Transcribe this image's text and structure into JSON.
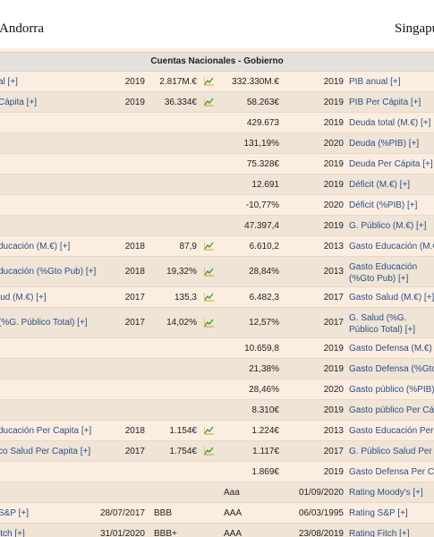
{
  "countries": {
    "left": "Andorra",
    "right": "Singapur"
  },
  "section_title": "Cuentas Nacionales - Gobierno",
  "rows": [
    {
      "ll": "al [+]",
      "ly": "2019",
      "lv": "2.817M.€",
      "icon": true,
      "rv": "332.330M.€",
      "ry": "2019",
      "rl": "PIB anual [+]",
      "h": 23
    },
    {
      "ll": "Cápita [+]",
      "ly": "2019",
      "lv": "36.334€",
      "icon": true,
      "rv": "58.263€",
      "ry": "2019",
      "rl": "PIB Per Cápita [+]",
      "h": 23
    },
    {
      "ll": "",
      "ly": "",
      "lv": "",
      "icon": false,
      "rv": "429.673",
      "ry": "2019",
      "rl": "Deuda total (M.€) [+]",
      "h": 23
    },
    {
      "ll": "",
      "ly": "",
      "lv": "",
      "icon": false,
      "rv": "131,19%",
      "ry": "2020",
      "rl": "Deuda (%PIB) [+]",
      "h": 23
    },
    {
      "ll": "",
      "ly": "",
      "lv": "",
      "icon": false,
      "rv": "75.328€",
      "ry": "2019",
      "rl": "Deuda Per Cápita [+]",
      "h": 23
    },
    {
      "ll": "",
      "ly": "",
      "lv": "",
      "icon": false,
      "rv": "12.691",
      "ry": "2019",
      "rl": "Déficit (M.€) [+]",
      "h": 23
    },
    {
      "ll": "",
      "ly": "",
      "lv": "",
      "icon": false,
      "rv": "-10,77%",
      "ry": "2020",
      "rl": "Déficit (%PIB) [+]",
      "h": 23
    },
    {
      "ll": "",
      "ly": "",
      "lv": "",
      "icon": false,
      "rv": "47.397,4",
      "ry": "2019",
      "rl": "G. Público (M.€) [+]",
      "h": 23
    },
    {
      "ll": "ducación (M.€) [+]",
      "ly": "2018",
      "lv": "87,9",
      "icon": true,
      "rv": "6.610,2",
      "ry": "2013",
      "rl": "Gasto Educación (M.€) [+]",
      "h": 23
    },
    {
      "ll": "ducación (%Gto Pub) [+]",
      "ly": "2018",
      "lv": "19,32%",
      "icon": true,
      "rv": "28,84%",
      "ry": "2013",
      "rl": "Gasto Educación (%Gto Pub) [+]",
      "h": 34,
      "wrap": true
    },
    {
      "ll": "lud (M.€) [+]",
      "ly": "2017",
      "lv": "135,3",
      "icon": true,
      "rv": "6.482,3",
      "ry": "2017",
      "rl": "Gasto Salud (M.€) [+]",
      "h": 23
    },
    {
      "ll": "(%G. Público Total) [+]",
      "ly": "2017",
      "lv": "14,02%",
      "icon": true,
      "rv": "12,57%",
      "ry": "2017",
      "rl": "G. Salud (%G. Público Total) [+]",
      "h": 34,
      "wrap": true
    },
    {
      "ll": "",
      "ly": "",
      "lv": "",
      "icon": false,
      "rv": "10.659,8",
      "ry": "2019",
      "rl": "Gasto Defensa (M.€) [+]",
      "h": 23
    },
    {
      "ll": "",
      "ly": "",
      "lv": "",
      "icon": false,
      "rv": "21,38%",
      "ry": "2019",
      "rl": "Gasto Defensa (%Gto Pub) [+]",
      "h": 23
    },
    {
      "ll": "",
      "ly": "",
      "lv": "",
      "icon": false,
      "rv": "28,46%",
      "ry": "2020",
      "rl": "Gasto público (%PIB) [+]",
      "h": 23
    },
    {
      "ll": "",
      "ly": "",
      "lv": "",
      "icon": false,
      "rv": "8.310€",
      "ry": "2019",
      "rl": "Gasto público Per Cápita [+]",
      "h": 23
    },
    {
      "ll": "ducación Per Capita [+]",
      "ly": "2018",
      "lv": "1.154€",
      "icon": true,
      "rv": "1.224€",
      "ry": "2013",
      "rl": "Gasto Educación Per Capita [+]",
      "h": 23
    },
    {
      "ll": "co Salud Per Capita [+]",
      "ly": "2017",
      "lv": "1.754€",
      "icon": true,
      "rv": "1.117€",
      "ry": "2017",
      "rl": "G. Público Salud Per Capita [+]",
      "h": 23
    },
    {
      "ll": "",
      "ly": "",
      "lv": "",
      "icon": false,
      "rv": "1.869€",
      "ry": "2019",
      "rl": "Gasto Defensa Per Capita [+]",
      "h": 23
    },
    {
      "ll": "",
      "ly": "",
      "lr": "",
      "rr": "Aaa",
      "ry": "01/09/2020",
      "rl": "Rating Moody's [+]",
      "h": 23,
      "rating": true
    },
    {
      "ll": "S&P [+]",
      "ly": "28/07/2017",
      "lr": "BBB",
      "rr": "AAA",
      "ry": "06/03/1995",
      "rl": "Rating S&P [+]",
      "h": 23,
      "rating": true
    },
    {
      "ll": "itch [+]",
      "ly": "31/01/2020",
      "lr": "BBB+",
      "rr": "AAA",
      "ry": "23/08/2019",
      "rl": "Rating Fitch [+]",
      "h": 23,
      "rating": true
    }
  ]
}
